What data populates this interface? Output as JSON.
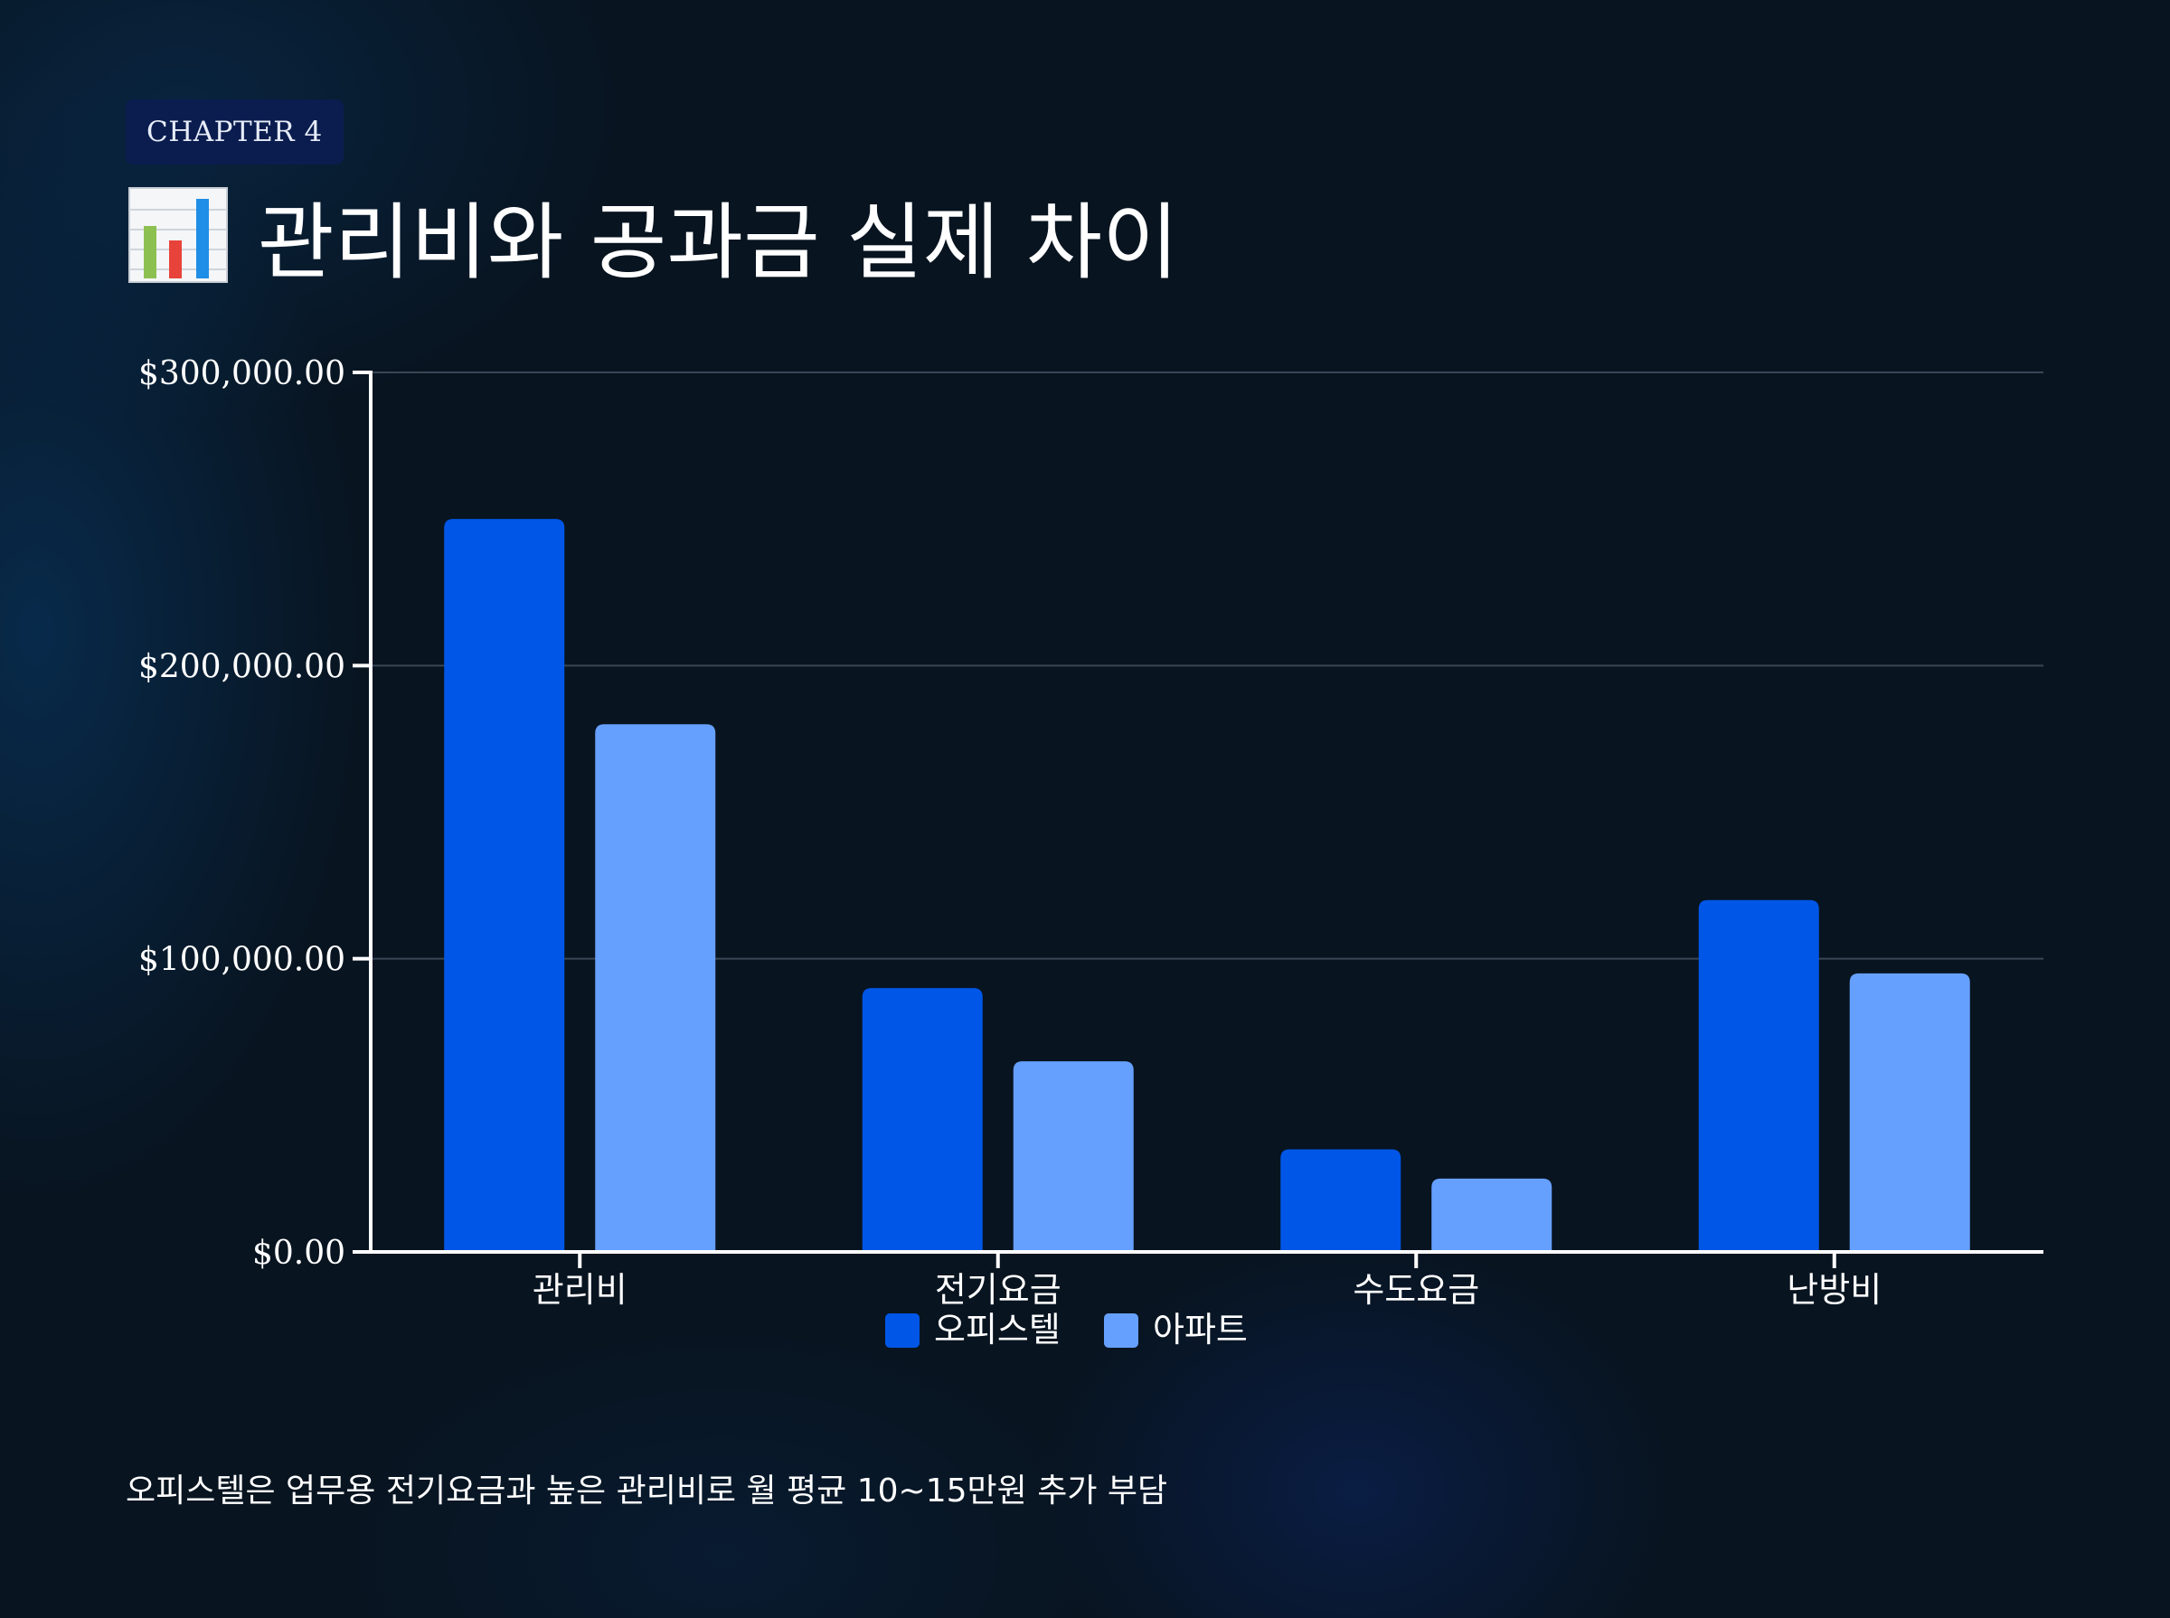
{
  "header": {
    "chapter_label": "CHAPTER 4",
    "title": "관리비와 공과금 실제 차이",
    "title_icon": "bar-chart-icon"
  },
  "footnote": "오피스텔은 업무용 전기요금과 높은 관리비로 월 평균 10~15만원 추가 부담",
  "colors": {
    "officetel": "#0056e6",
    "apartment": "#66a0ff",
    "background": "#081420",
    "gridline": "#3a4654",
    "axis": "#ffffff"
  },
  "chart_data": {
    "type": "bar",
    "title": "관리비와 공과금 실제 차이",
    "xlabel": "",
    "ylabel": "",
    "categories": [
      "관리비",
      "전기요금",
      "수도요금",
      "난방비"
    ],
    "series": [
      {
        "name": "오피스텔",
        "values": [
          250000,
          90000,
          35000,
          120000
        ]
      },
      {
        "name": "아파트",
        "values": [
          180000,
          65000,
          25000,
          95000
        ]
      }
    ],
    "ylim": [
      0,
      300000
    ],
    "yticks": [
      0,
      100000,
      200000,
      300000
    ],
    "ytick_labels": [
      "$0.00",
      "$100,000.00",
      "$200,000.00",
      "$300,000.00"
    ],
    "grid": true,
    "legend_position": "bottom"
  }
}
